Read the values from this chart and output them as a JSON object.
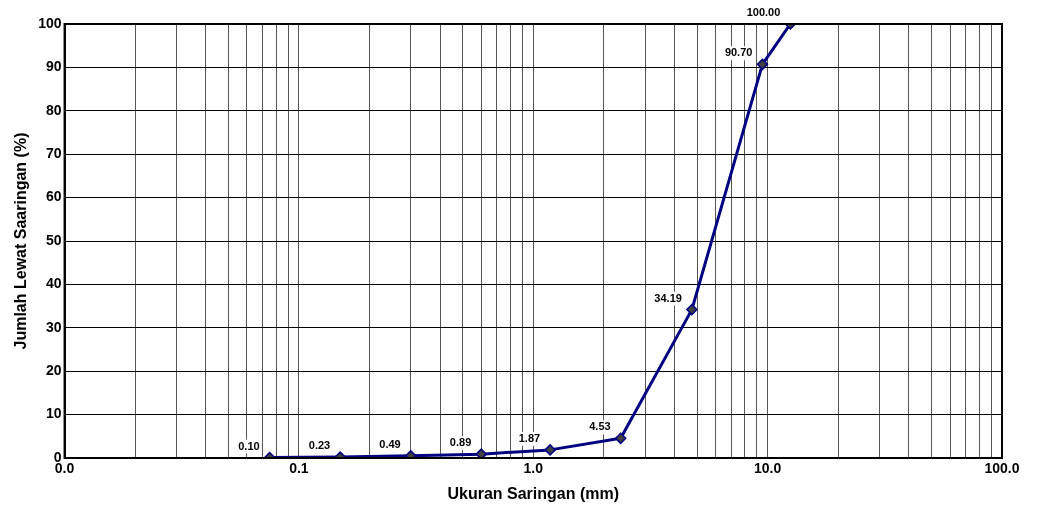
{
  "chart_data": {
    "type": "line",
    "xlabel": "Ukuran Saringan (mm)",
    "ylabel": "Jumlah Lewat Saaringan (%)",
    "x": [
      0.075,
      0.15,
      0.3,
      0.6,
      1.18,
      2.36,
      4.75,
      9.5,
      12.5
    ],
    "series": [
      {
        "color": "#000080",
        "values": [
          0.1,
          0.23,
          0.49,
          0.89,
          1.87,
          4.53,
          34.19,
          90.7,
          100.0
        ],
        "value_labels": [
          "0.10",
          "0.23",
          "0.49",
          "0.89",
          "1.87",
          "4.53",
          "34.19",
          "90.70",
          "100.00"
        ]
      }
    ],
    "log": "x",
    "xlim": [
      0.01,
      100
    ],
    "ylim": [
      0,
      100
    ],
    "xticks": [
      {
        "value": 0.01,
        "label": "0.0"
      },
      {
        "value": 0.02,
        "label": null
      },
      {
        "value": 0.03,
        "label": null
      },
      {
        "value": 0.04,
        "label": null
      },
      {
        "value": 0.05,
        "label": null
      },
      {
        "value": 0.06,
        "label": null
      },
      {
        "value": 0.07,
        "label": null
      },
      {
        "value": 0.08,
        "label": null
      },
      {
        "value": 0.09,
        "label": null
      },
      {
        "value": 0.1,
        "label": "0.1"
      },
      {
        "value": 0.2,
        "label": null
      },
      {
        "value": 0.3,
        "label": null
      },
      {
        "value": 0.4,
        "label": null
      },
      {
        "value": 0.5,
        "label": null
      },
      {
        "value": 0.6,
        "label": null
      },
      {
        "value": 0.7,
        "label": null
      },
      {
        "value": 0.8,
        "label": null
      },
      {
        "value": 0.9,
        "label": null
      },
      {
        "value": 1,
        "label": "1.0"
      },
      {
        "value": 2,
        "label": null
      },
      {
        "value": 3,
        "label": null
      },
      {
        "value": 4,
        "label": null
      },
      {
        "value": 5,
        "label": null
      },
      {
        "value": 6,
        "label": null
      },
      {
        "value": 7,
        "label": null
      },
      {
        "value": 8,
        "label": null
      },
      {
        "value": 9,
        "label": null
      },
      {
        "value": 10,
        "label": "10.0"
      },
      {
        "value": 20,
        "label": null
      },
      {
        "value": 30,
        "label": null
      },
      {
        "value": 40,
        "label": null
      },
      {
        "value": 50,
        "label": null
      },
      {
        "value": 60,
        "label": null
      },
      {
        "value": 70,
        "label": null
      },
      {
        "value": 80,
        "label": null
      },
      {
        "value": 90,
        "label": null
      },
      {
        "value": 100,
        "label": "100.0"
      }
    ],
    "yticks": [
      0,
      10,
      20,
      30,
      40,
      50,
      60,
      70,
      80,
      90,
      100
    ],
    "grid": true,
    "legend": false,
    "marker": "diamond",
    "line_style": "solid"
  }
}
